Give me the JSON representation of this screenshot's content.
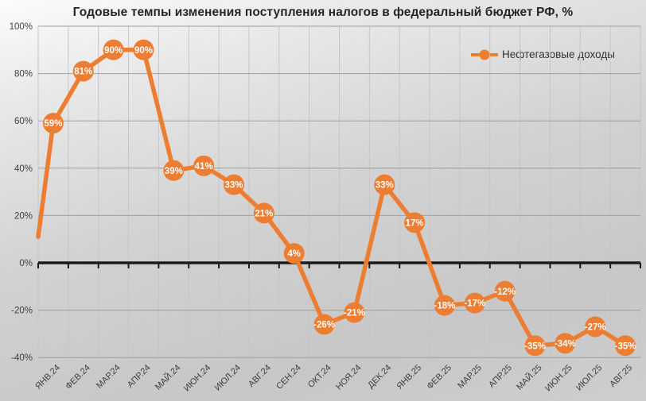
{
  "chart_data": {
    "type": "line",
    "title": "Годовые темпы изменения поступления налогов в федеральный бюджет РФ, %",
    "categories": [
      "ЯНВ.24",
      "ФЕВ.24",
      "МАР.24",
      "АПР.24",
      "МАЙ.24",
      "ИЮН.24",
      "ИЮЛ.24",
      "АВГ.24",
      "СЕН.24",
      "ОКТ.24",
      "НОЯ.24",
      "ДЕК.24",
      "ЯНВ.25",
      "ФЕВ.25",
      "МАР.25",
      "АПР.25",
      "МАЙ.25",
      "ИЮН.25",
      "ИЮЛ.25",
      "АВГ.25"
    ],
    "series": [
      {
        "name": "Нефтегазовые доходы",
        "values": [
          59,
          81,
          90,
          90,
          39,
          41,
          33,
          21,
          4,
          -26,
          -21,
          33,
          17,
          -18,
          -17,
          -12,
          -35,
          -34,
          -27,
          -35
        ],
        "color": "#ED7D31"
      }
    ],
    "data_label_format": "{value}%",
    "yticks": [
      100,
      80,
      60,
      40,
      20,
      0,
      -20,
      -40
    ],
    "ytick_labels": [
      "100%",
      "80%",
      "60%",
      "40%",
      "20%",
      "0%",
      "-20%",
      "-40%"
    ],
    "ylim": [
      -40,
      100
    ],
    "grid": true,
    "legend_position": "top-right",
    "edge_start_value": 11
  },
  "colors": {
    "accent": "#ED7D31",
    "marker_label": "#FFFFFF",
    "title": "#262626",
    "axis_text": "#3F3F3F",
    "grid_major": "#9E9E9E",
    "grid_minor": "#C6C6C6",
    "zero_axis": "#1A1A1A"
  }
}
